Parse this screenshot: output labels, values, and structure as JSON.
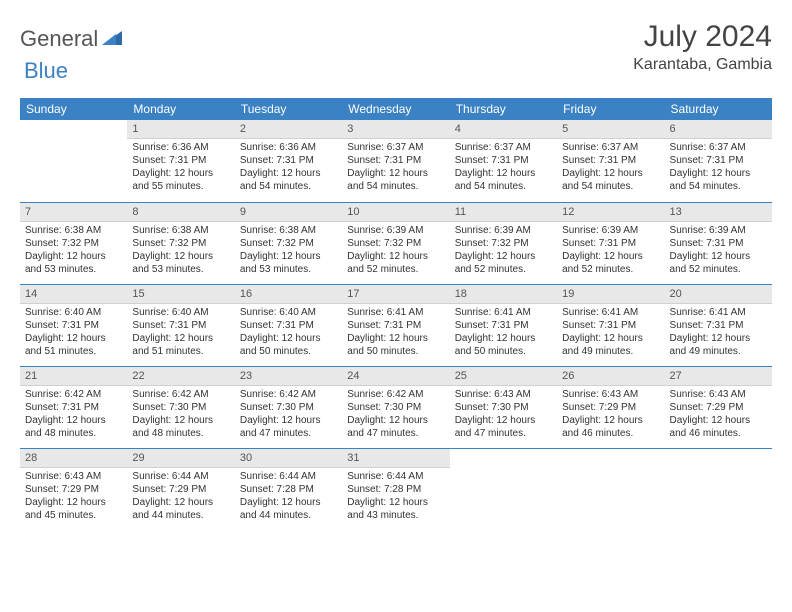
{
  "logo": {
    "general": "General",
    "blue": "Blue"
  },
  "title": "July 2024",
  "location": "Karantaba, Gambia",
  "colors": {
    "header_bg": "#3b82c4",
    "header_text": "#ffffff",
    "daynum_bg": "#e8e8e8",
    "text": "#333333",
    "border": "#3b82c4"
  },
  "weekdays": [
    "Sunday",
    "Monday",
    "Tuesday",
    "Wednesday",
    "Thursday",
    "Friday",
    "Saturday"
  ],
  "weeks": [
    [
      null,
      {
        "n": "1",
        "sr": "Sunrise: 6:36 AM",
        "ss": "Sunset: 7:31 PM",
        "dl": "Daylight: 12 hours and 55 minutes."
      },
      {
        "n": "2",
        "sr": "Sunrise: 6:36 AM",
        "ss": "Sunset: 7:31 PM",
        "dl": "Daylight: 12 hours and 54 minutes."
      },
      {
        "n": "3",
        "sr": "Sunrise: 6:37 AM",
        "ss": "Sunset: 7:31 PM",
        "dl": "Daylight: 12 hours and 54 minutes."
      },
      {
        "n": "4",
        "sr": "Sunrise: 6:37 AM",
        "ss": "Sunset: 7:31 PM",
        "dl": "Daylight: 12 hours and 54 minutes."
      },
      {
        "n": "5",
        "sr": "Sunrise: 6:37 AM",
        "ss": "Sunset: 7:31 PM",
        "dl": "Daylight: 12 hours and 54 minutes."
      },
      {
        "n": "6",
        "sr": "Sunrise: 6:37 AM",
        "ss": "Sunset: 7:31 PM",
        "dl": "Daylight: 12 hours and 54 minutes."
      }
    ],
    [
      {
        "n": "7",
        "sr": "Sunrise: 6:38 AM",
        "ss": "Sunset: 7:32 PM",
        "dl": "Daylight: 12 hours and 53 minutes."
      },
      {
        "n": "8",
        "sr": "Sunrise: 6:38 AM",
        "ss": "Sunset: 7:32 PM",
        "dl": "Daylight: 12 hours and 53 minutes."
      },
      {
        "n": "9",
        "sr": "Sunrise: 6:38 AM",
        "ss": "Sunset: 7:32 PM",
        "dl": "Daylight: 12 hours and 53 minutes."
      },
      {
        "n": "10",
        "sr": "Sunrise: 6:39 AM",
        "ss": "Sunset: 7:32 PM",
        "dl": "Daylight: 12 hours and 52 minutes."
      },
      {
        "n": "11",
        "sr": "Sunrise: 6:39 AM",
        "ss": "Sunset: 7:32 PM",
        "dl": "Daylight: 12 hours and 52 minutes."
      },
      {
        "n": "12",
        "sr": "Sunrise: 6:39 AM",
        "ss": "Sunset: 7:31 PM",
        "dl": "Daylight: 12 hours and 52 minutes."
      },
      {
        "n": "13",
        "sr": "Sunrise: 6:39 AM",
        "ss": "Sunset: 7:31 PM",
        "dl": "Daylight: 12 hours and 52 minutes."
      }
    ],
    [
      {
        "n": "14",
        "sr": "Sunrise: 6:40 AM",
        "ss": "Sunset: 7:31 PM",
        "dl": "Daylight: 12 hours and 51 minutes."
      },
      {
        "n": "15",
        "sr": "Sunrise: 6:40 AM",
        "ss": "Sunset: 7:31 PM",
        "dl": "Daylight: 12 hours and 51 minutes."
      },
      {
        "n": "16",
        "sr": "Sunrise: 6:40 AM",
        "ss": "Sunset: 7:31 PM",
        "dl": "Daylight: 12 hours and 50 minutes."
      },
      {
        "n": "17",
        "sr": "Sunrise: 6:41 AM",
        "ss": "Sunset: 7:31 PM",
        "dl": "Daylight: 12 hours and 50 minutes."
      },
      {
        "n": "18",
        "sr": "Sunrise: 6:41 AM",
        "ss": "Sunset: 7:31 PM",
        "dl": "Daylight: 12 hours and 50 minutes."
      },
      {
        "n": "19",
        "sr": "Sunrise: 6:41 AM",
        "ss": "Sunset: 7:31 PM",
        "dl": "Daylight: 12 hours and 49 minutes."
      },
      {
        "n": "20",
        "sr": "Sunrise: 6:41 AM",
        "ss": "Sunset: 7:31 PM",
        "dl": "Daylight: 12 hours and 49 minutes."
      }
    ],
    [
      {
        "n": "21",
        "sr": "Sunrise: 6:42 AM",
        "ss": "Sunset: 7:31 PM",
        "dl": "Daylight: 12 hours and 48 minutes."
      },
      {
        "n": "22",
        "sr": "Sunrise: 6:42 AM",
        "ss": "Sunset: 7:30 PM",
        "dl": "Daylight: 12 hours and 48 minutes."
      },
      {
        "n": "23",
        "sr": "Sunrise: 6:42 AM",
        "ss": "Sunset: 7:30 PM",
        "dl": "Daylight: 12 hours and 47 minutes."
      },
      {
        "n": "24",
        "sr": "Sunrise: 6:42 AM",
        "ss": "Sunset: 7:30 PM",
        "dl": "Daylight: 12 hours and 47 minutes."
      },
      {
        "n": "25",
        "sr": "Sunrise: 6:43 AM",
        "ss": "Sunset: 7:30 PM",
        "dl": "Daylight: 12 hours and 47 minutes."
      },
      {
        "n": "26",
        "sr": "Sunrise: 6:43 AM",
        "ss": "Sunset: 7:29 PM",
        "dl": "Daylight: 12 hours and 46 minutes."
      },
      {
        "n": "27",
        "sr": "Sunrise: 6:43 AM",
        "ss": "Sunset: 7:29 PM",
        "dl": "Daylight: 12 hours and 46 minutes."
      }
    ],
    [
      {
        "n": "28",
        "sr": "Sunrise: 6:43 AM",
        "ss": "Sunset: 7:29 PM",
        "dl": "Daylight: 12 hours and 45 minutes."
      },
      {
        "n": "29",
        "sr": "Sunrise: 6:44 AM",
        "ss": "Sunset: 7:29 PM",
        "dl": "Daylight: 12 hours and 44 minutes."
      },
      {
        "n": "30",
        "sr": "Sunrise: 6:44 AM",
        "ss": "Sunset: 7:28 PM",
        "dl": "Daylight: 12 hours and 44 minutes."
      },
      {
        "n": "31",
        "sr": "Sunrise: 6:44 AM",
        "ss": "Sunset: 7:28 PM",
        "dl": "Daylight: 12 hours and 43 minutes."
      },
      null,
      null,
      null
    ]
  ]
}
